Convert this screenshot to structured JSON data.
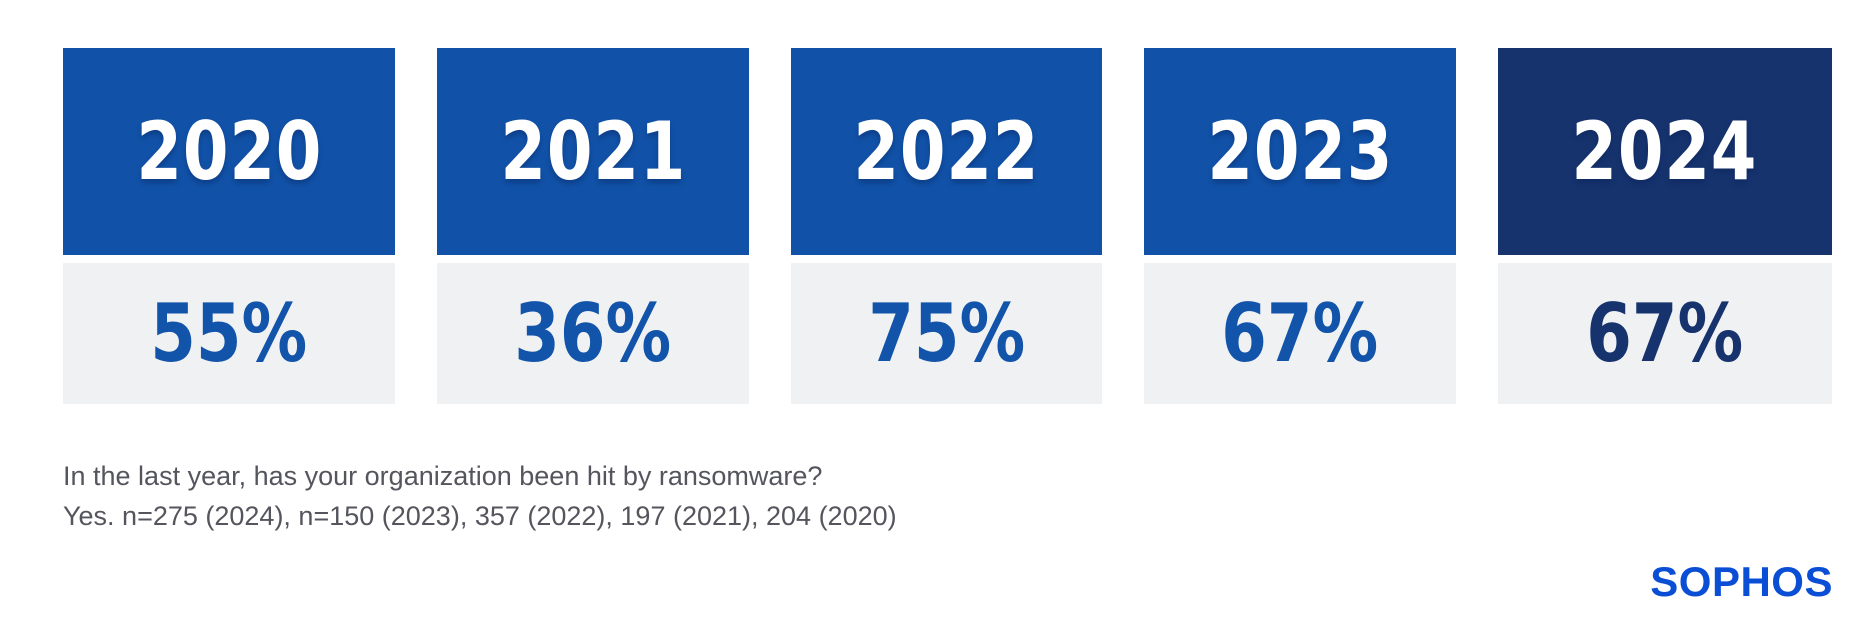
{
  "chart_data": {
    "type": "bar",
    "title": "",
    "categories": [
      "2020",
      "2021",
      "2022",
      "2023",
      "2024"
    ],
    "values": [
      55,
      36,
      75,
      67,
      67
    ],
    "value_labels": [
      "55%",
      "36%",
      "75%",
      "67%",
      "67%"
    ],
    "unit": "%",
    "highlight_category": "2024",
    "legend_position": "none",
    "grid": false,
    "annotations": [
      "In the last year, has your organization been hit by ransomware?",
      "Yes. n=275 (2024), n=150 (2023), 357 (2022), 197 (2021), 204 (2020)"
    ]
  },
  "caption": {
    "question": "In the last year, has your organization been hit by ransomware?",
    "sample": "Yes. n=275 (2024), n=150 (2023), 357 (2022), 197 (2021), 204 (2020)"
  },
  "brand": {
    "logo_text": "SOPHOS"
  },
  "colors": {
    "block_blue": "#1152a8",
    "block_navy": "#16336e",
    "value_blue": "#1254a9",
    "value_navy": "#16336e",
    "panel_gray": "#f0f1f3",
    "caption_gray": "#54555d",
    "logo_blue": "#0a4ed6",
    "year_text": "#ffffff",
    "background": "#ffffff"
  }
}
